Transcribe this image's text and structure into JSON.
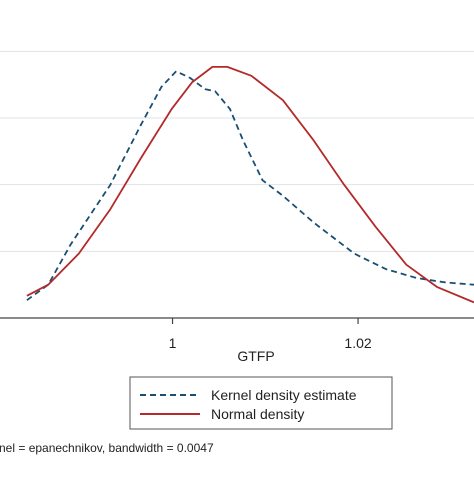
{
  "chart_data": {
    "type": "line",
    "xlabel": "GTFP",
    "ylabel": "",
    "xlim": [
      0.9814,
      1.0325
    ],
    "ylim": [
      0,
      1.35
    ],
    "xticks": [
      1,
      1.02
    ],
    "xtick_labels": [
      "1",
      "1.02"
    ],
    "yticks": [
      0.3,
      0.6,
      0.9,
      1.2
    ],
    "grid": "horizontal",
    "legend_position": "bottom",
    "note": "nel = epanechnikov, bandwidth = 0.0047",
    "series": [
      {
        "name": "Kernel density estimate",
        "style": "dashed",
        "color": "#1a4f72",
        "x": [
          0.9843,
          0.9866,
          0.989,
          0.9933,
          0.9966,
          0.9988,
          1.0004,
          1.0019,
          1.0035,
          1.0046,
          1.0062,
          1.0076,
          1.0097,
          1.0119,
          1.0152,
          1.0196,
          1.023,
          1.0263,
          1.0294,
          1.0325
        ],
        "y": [
          0.08,
          0.15,
          0.33,
          0.6,
          0.87,
          1.04,
          1.11,
          1.08,
          1.03,
          1.02,
          0.94,
          0.8,
          0.62,
          0.55,
          0.43,
          0.29,
          0.22,
          0.18,
          0.16,
          0.15
        ]
      },
      {
        "name": "Normal density",
        "style": "solid",
        "color": "#b22a2a",
        "x": [
          0.9843,
          0.9866,
          0.9899,
          0.9933,
          0.9966,
          0.9999,
          1.0021,
          1.0043,
          1.0059,
          1.0085,
          1.0119,
          1.0152,
          1.0185,
          1.0219,
          1.0252,
          1.0285,
          1.0325
        ],
        "y": [
          0.1,
          0.15,
          0.29,
          0.49,
          0.72,
          0.94,
          1.06,
          1.13,
          1.13,
          1.09,
          0.98,
          0.8,
          0.6,
          0.41,
          0.24,
          0.14,
          0.07
        ]
      }
    ]
  }
}
